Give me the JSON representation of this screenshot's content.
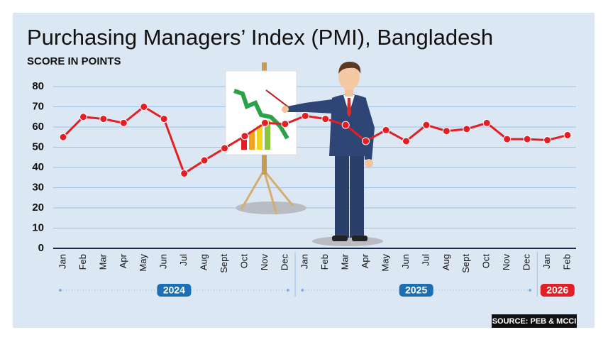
{
  "chart_data": {
    "type": "line",
    "title": "Purchasing Managers’ Index (PMI), Bangladesh",
    "subtitle": "SCORE IN POINTS",
    "categories": [
      "Jan",
      "Feb",
      "Mar",
      "Apr",
      "May",
      "Jun",
      "Jul",
      "Aug",
      "Sept",
      "Oct",
      "Nov",
      "Dec",
      "Jan",
      "Feb",
      "Mar",
      "Apr",
      "May",
      "Jun",
      "Jul",
      "Aug",
      "Sept",
      "Oct",
      "Nov",
      "Dec",
      "Jan",
      "Feb"
    ],
    "year_labels": [
      "2024",
      "2025",
      "2026"
    ],
    "year_colors": [
      "#1a6fb5",
      "#1a6fb5",
      "#e31e24"
    ],
    "values": [
      55,
      65,
      64,
      62,
      70,
      64,
      37,
      43.5,
      49.5,
      55.5,
      62,
      61.5,
      65.5,
      64,
      61,
      53,
      58.5,
      53,
      61,
      58,
      59,
      62,
      54,
      54,
      53.5,
      56
    ],
    "color": "#e31e24",
    "ylim": [
      0,
      80
    ],
    "yticks": [
      0,
      10,
      20,
      30,
      40,
      50,
      60,
      70,
      80
    ],
    "grid": true,
    "source": "SOURCE: PEB & MCCI"
  }
}
